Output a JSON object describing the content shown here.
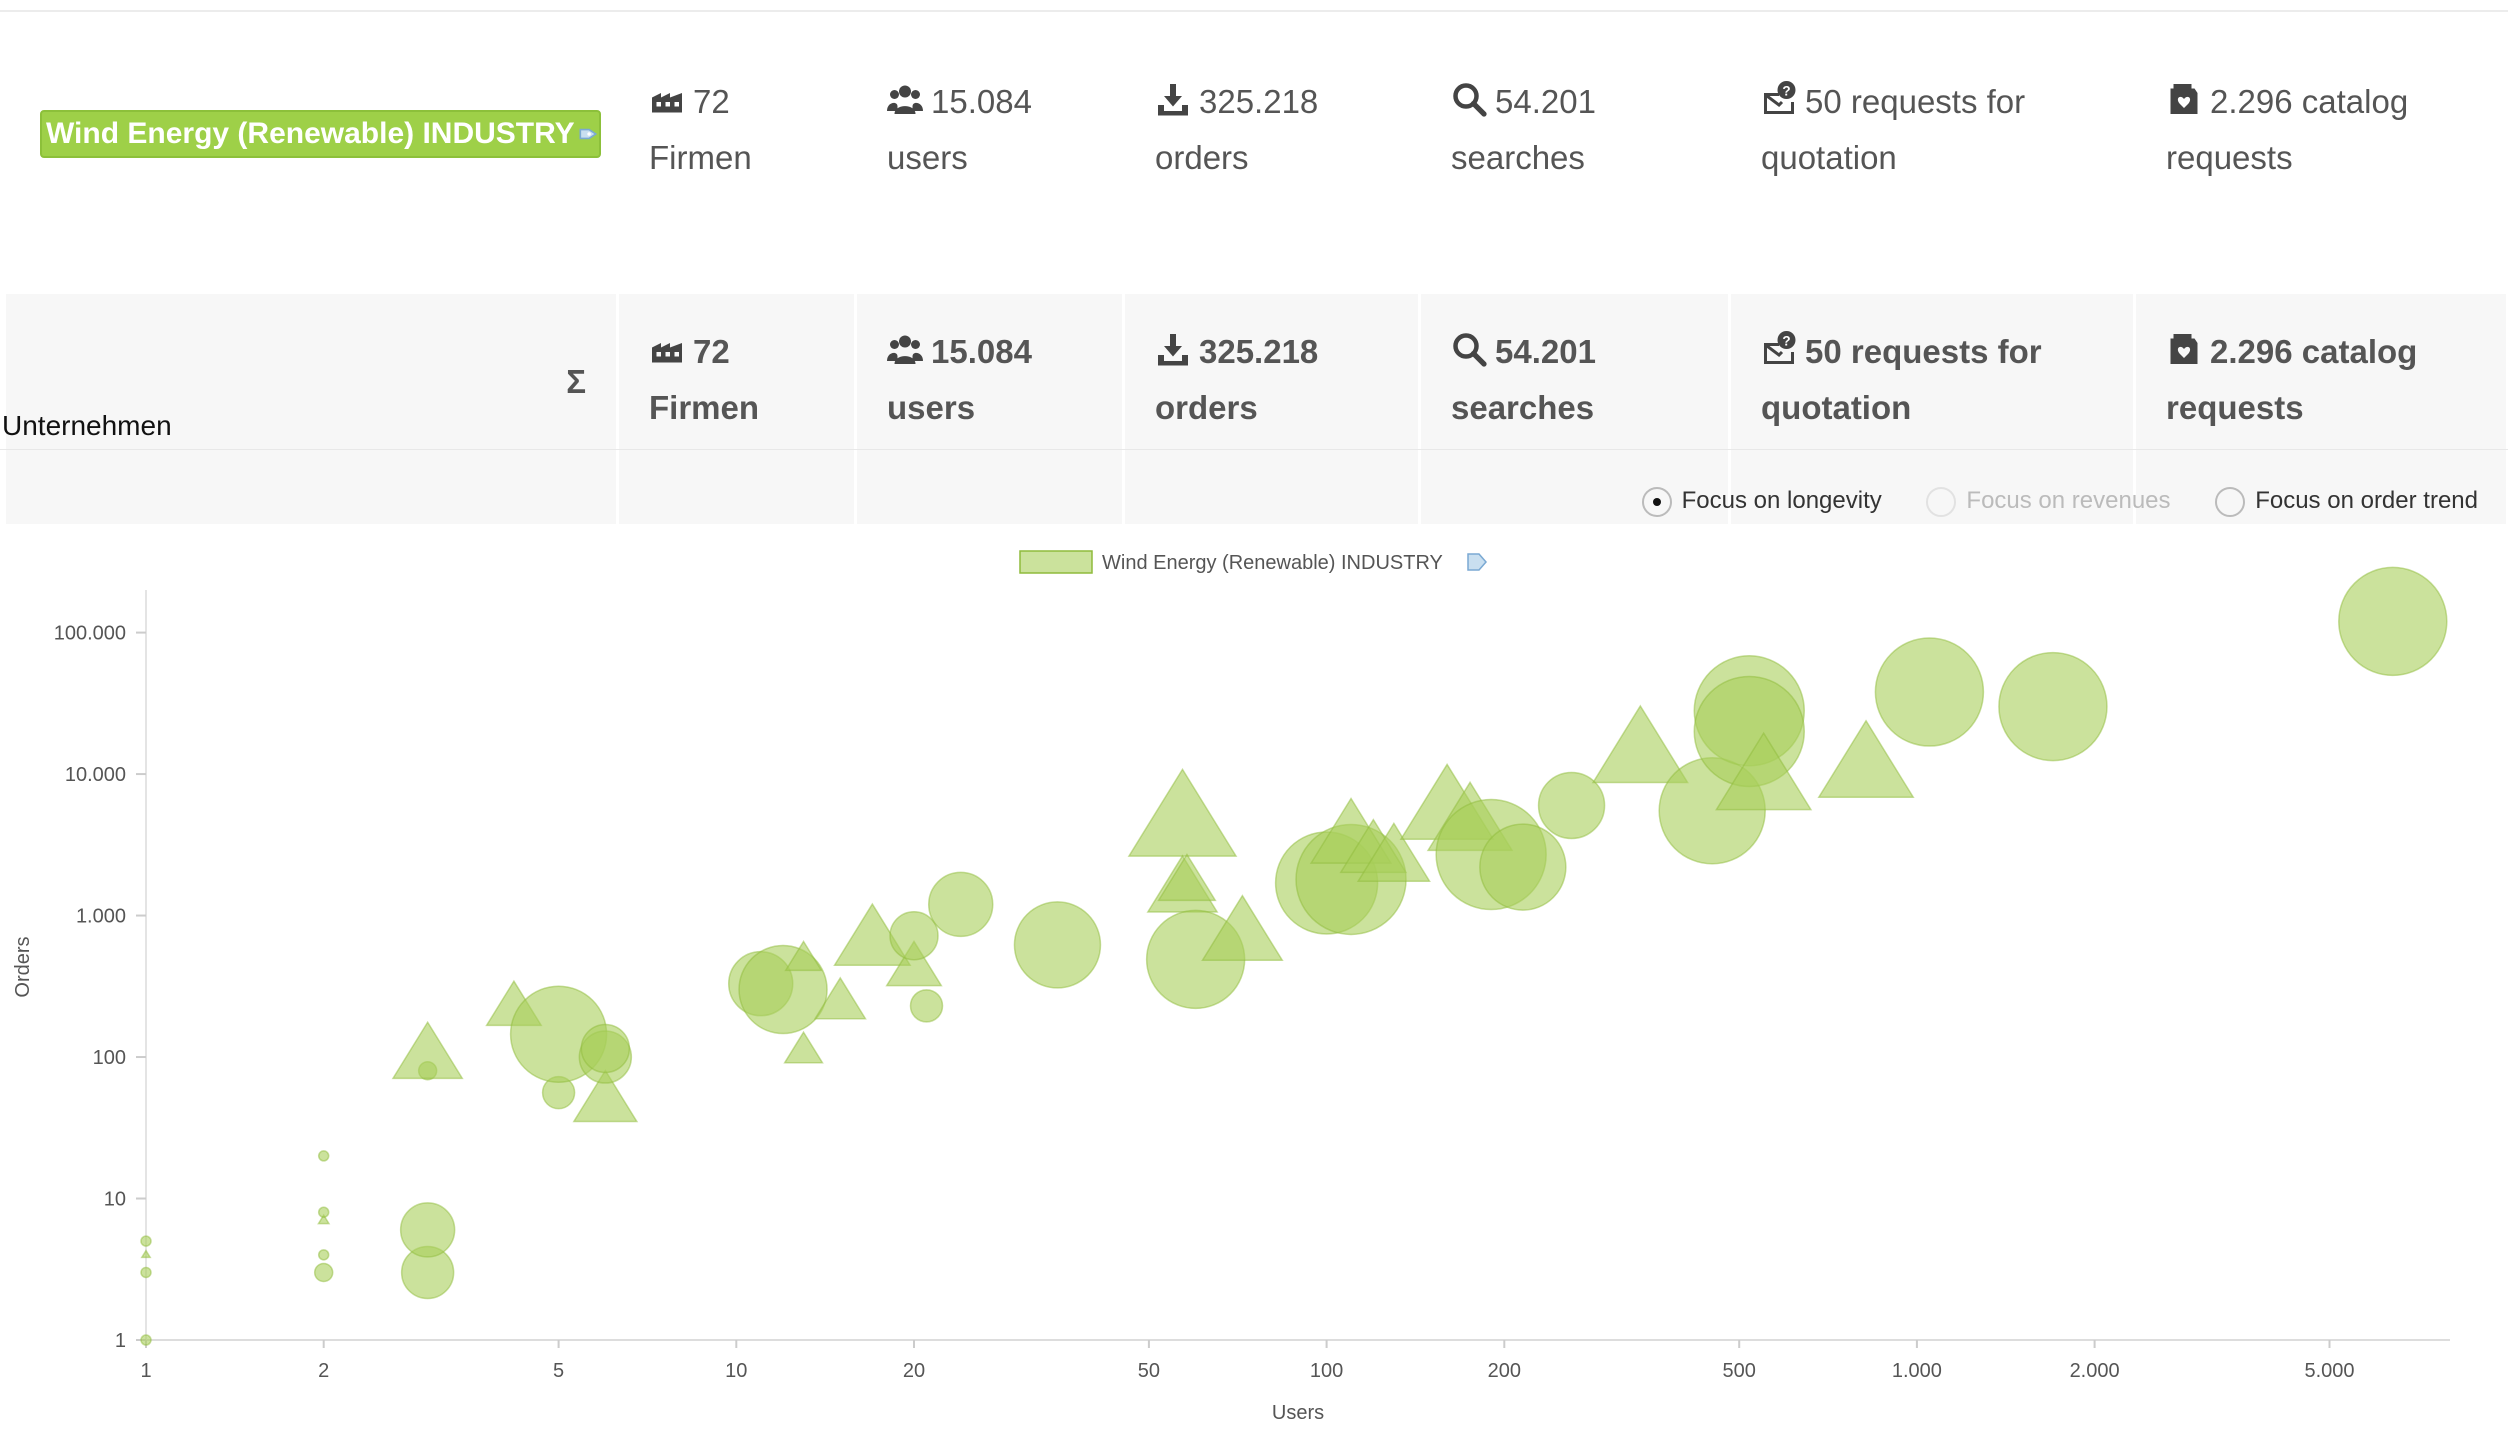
{
  "industry": {
    "name": "Wind Energy (Renewable) INDUSTRY"
  },
  "stats": [
    {
      "icon": "factory-icon",
      "value": "72",
      "label": "Firmen"
    },
    {
      "icon": "users-icon",
      "value": "15.084",
      "label": "users"
    },
    {
      "icon": "download-icon",
      "value": "325.218",
      "label": "orders"
    },
    {
      "icon": "search-icon",
      "value": "54.201",
      "label": "searches"
    },
    {
      "icon": "quote-request-icon",
      "value": "50",
      "label": "requests for quotation"
    },
    {
      "icon": "catalog-icon",
      "value": "2.296",
      "label": "catalog requests"
    }
  ],
  "totals": {
    "symbol": "Σ",
    "items": [
      {
        "value": "72",
        "label": "Firmen"
      },
      {
        "value": "15.084",
        "label": "users"
      },
      {
        "value": "325.218",
        "label": "orders"
      },
      {
        "value": "54.201",
        "label": "searches"
      },
      {
        "value": "50",
        "label": "requests for quotation"
      },
      {
        "value": "2.296",
        "label": "catalog requests"
      }
    ]
  },
  "section_title": "Unternehmen",
  "focus_options": [
    {
      "label": "Focus on longevity",
      "selected": true,
      "enabled": true
    },
    {
      "label": "Focus on revenues",
      "selected": false,
      "enabled": false
    },
    {
      "label": "Focus on order trend",
      "selected": false,
      "enabled": true
    }
  ],
  "colors": {
    "accent": "#9ed048",
    "bubble_fill": "#a8cf5a",
    "bubble_stroke": "#8fbb3c"
  },
  "chart_data": {
    "type": "scatter",
    "title": "",
    "xlabel": "Users",
    "ylabel": "Orders",
    "xscale": "log",
    "yscale": "log",
    "xlim": [
      1,
      8000
    ],
    "ylim": [
      1,
      200000
    ],
    "xticks": [
      {
        "value": 1,
        "label": "1"
      },
      {
        "value": 2,
        "label": "2"
      },
      {
        "value": 5,
        "label": "5"
      },
      {
        "value": 10,
        "label": "10"
      },
      {
        "value": 20,
        "label": "20"
      },
      {
        "value": 50,
        "label": "50"
      },
      {
        "value": 100,
        "label": "100"
      },
      {
        "value": 200,
        "label": "200"
      },
      {
        "value": 500,
        "label": "500"
      },
      {
        "value": 1000,
        "label": "1.000"
      },
      {
        "value": 2000,
        "label": "2.000"
      },
      {
        "value": 5000,
        "label": "5.000"
      }
    ],
    "yticks": [
      {
        "value": 1,
        "label": "1"
      },
      {
        "value": 10,
        "label": "10"
      },
      {
        "value": 100,
        "label": "100"
      },
      {
        "value": 1000,
        "label": "1.000"
      },
      {
        "value": 10000,
        "label": "10.000"
      },
      {
        "value": 100000,
        "label": "100.000"
      }
    ],
    "legend": "Wind Energy (Renewable) INDUSTRY",
    "series": [
      {
        "name": "Wind Energy (Renewable) INDUSTRY",
        "points": [
          {
            "x": 1,
            "y": 1,
            "r": 5,
            "shape": "circle"
          },
          {
            "x": 1,
            "y": 3,
            "r": 5,
            "shape": "circle"
          },
          {
            "x": 1,
            "y": 4,
            "r": 4,
            "shape": "triangle"
          },
          {
            "x": 1,
            "y": 5,
            "r": 5,
            "shape": "circle"
          },
          {
            "x": 2,
            "y": 3,
            "r": 9,
            "shape": "circle"
          },
          {
            "x": 2,
            "y": 4,
            "r": 5,
            "shape": "circle"
          },
          {
            "x": 2,
            "y": 7,
            "r": 5,
            "shape": "triangle"
          },
          {
            "x": 2,
            "y": 8,
            "r": 5,
            "shape": "circle"
          },
          {
            "x": 2,
            "y": 20,
            "r": 5,
            "shape": "circle"
          },
          {
            "x": 3,
            "y": 3,
            "r": 26,
            "shape": "circle"
          },
          {
            "x": 3,
            "y": 6,
            "r": 27,
            "shape": "circle"
          },
          {
            "x": 3,
            "y": 80,
            "r": 9,
            "shape": "circle"
          },
          {
            "x": 3,
            "y": 100,
            "r": 33,
            "shape": "triangle"
          },
          {
            "x": 4.2,
            "y": 220,
            "r": 26,
            "shape": "triangle"
          },
          {
            "x": 5,
            "y": 56,
            "r": 16,
            "shape": "circle"
          },
          {
            "x": 5,
            "y": 145,
            "r": 48,
            "shape": "circle"
          },
          {
            "x": 6,
            "y": 48,
            "r": 30,
            "shape": "triangle"
          },
          {
            "x": 6,
            "y": 100,
            "r": 26,
            "shape": "circle"
          },
          {
            "x": 6,
            "y": 115,
            "r": 24,
            "shape": "circle"
          },
          {
            "x": 11,
            "y": 330,
            "r": 32,
            "shape": "circle"
          },
          {
            "x": 12,
            "y": 300,
            "r": 44,
            "shape": "circle"
          },
          {
            "x": 13,
            "y": 110,
            "r": 18,
            "shape": "triangle"
          },
          {
            "x": 13,
            "y": 490,
            "r": 17,
            "shape": "triangle"
          },
          {
            "x": 15,
            "y": 240,
            "r": 24,
            "shape": "triangle"
          },
          {
            "x": 17,
            "y": 650,
            "r": 36,
            "shape": "triangle"
          },
          {
            "x": 20,
            "y": 420,
            "r": 26,
            "shape": "triangle"
          },
          {
            "x": 20,
            "y": 720,
            "r": 24,
            "shape": "circle"
          },
          {
            "x": 21,
            "y": 230,
            "r": 16,
            "shape": "circle"
          },
          {
            "x": 24,
            "y": 1200,
            "r": 32,
            "shape": "circle"
          },
          {
            "x": 35,
            "y": 620,
            "r": 43,
            "shape": "circle"
          },
          {
            "x": 57,
            "y": 4500,
            "r": 51,
            "shape": "triangle"
          },
          {
            "x": 57,
            "y": 1500,
            "r": 33,
            "shape": "triangle"
          },
          {
            "x": 58,
            "y": 1700,
            "r": 27,
            "shape": "triangle"
          },
          {
            "x": 60,
            "y": 490,
            "r": 49,
            "shape": "circle"
          },
          {
            "x": 72,
            "y": 720,
            "r": 38,
            "shape": "triangle"
          },
          {
            "x": 100,
            "y": 1700,
            "r": 51,
            "shape": "circle"
          },
          {
            "x": 110,
            "y": 1800,
            "r": 55,
            "shape": "circle"
          },
          {
            "x": 110,
            "y": 3500,
            "r": 38,
            "shape": "triangle"
          },
          {
            "x": 120,
            "y": 2800,
            "r": 31,
            "shape": "triangle"
          },
          {
            "x": 130,
            "y": 2500,
            "r": 34,
            "shape": "triangle"
          },
          {
            "x": 160,
            "y": 5500,
            "r": 44,
            "shape": "triangle"
          },
          {
            "x": 175,
            "y": 4400,
            "r": 40,
            "shape": "triangle"
          },
          {
            "x": 190,
            "y": 2700,
            "r": 55,
            "shape": "circle"
          },
          {
            "x": 215,
            "y": 2200,
            "r": 43,
            "shape": "circle"
          },
          {
            "x": 260,
            "y": 6000,
            "r": 33,
            "shape": "circle"
          },
          {
            "x": 340,
            "y": 14000,
            "r": 45,
            "shape": "triangle"
          },
          {
            "x": 450,
            "y": 5500,
            "r": 53,
            "shape": "circle"
          },
          {
            "x": 520,
            "y": 28000,
            "r": 55,
            "shape": "circle"
          },
          {
            "x": 520,
            "y": 20000,
            "r": 55,
            "shape": "circle"
          },
          {
            "x": 550,
            "y": 9000,
            "r": 45,
            "shape": "triangle"
          },
          {
            "x": 820,
            "y": 11000,
            "r": 45,
            "shape": "triangle"
          },
          {
            "x": 1050,
            "y": 38000,
            "r": 54,
            "shape": "circle"
          },
          {
            "x": 1700,
            "y": 30000,
            "r": 54,
            "shape": "circle"
          },
          {
            "x": 6400,
            "y": 120000,
            "r": 54,
            "shape": "circle"
          }
        ]
      }
    ]
  }
}
